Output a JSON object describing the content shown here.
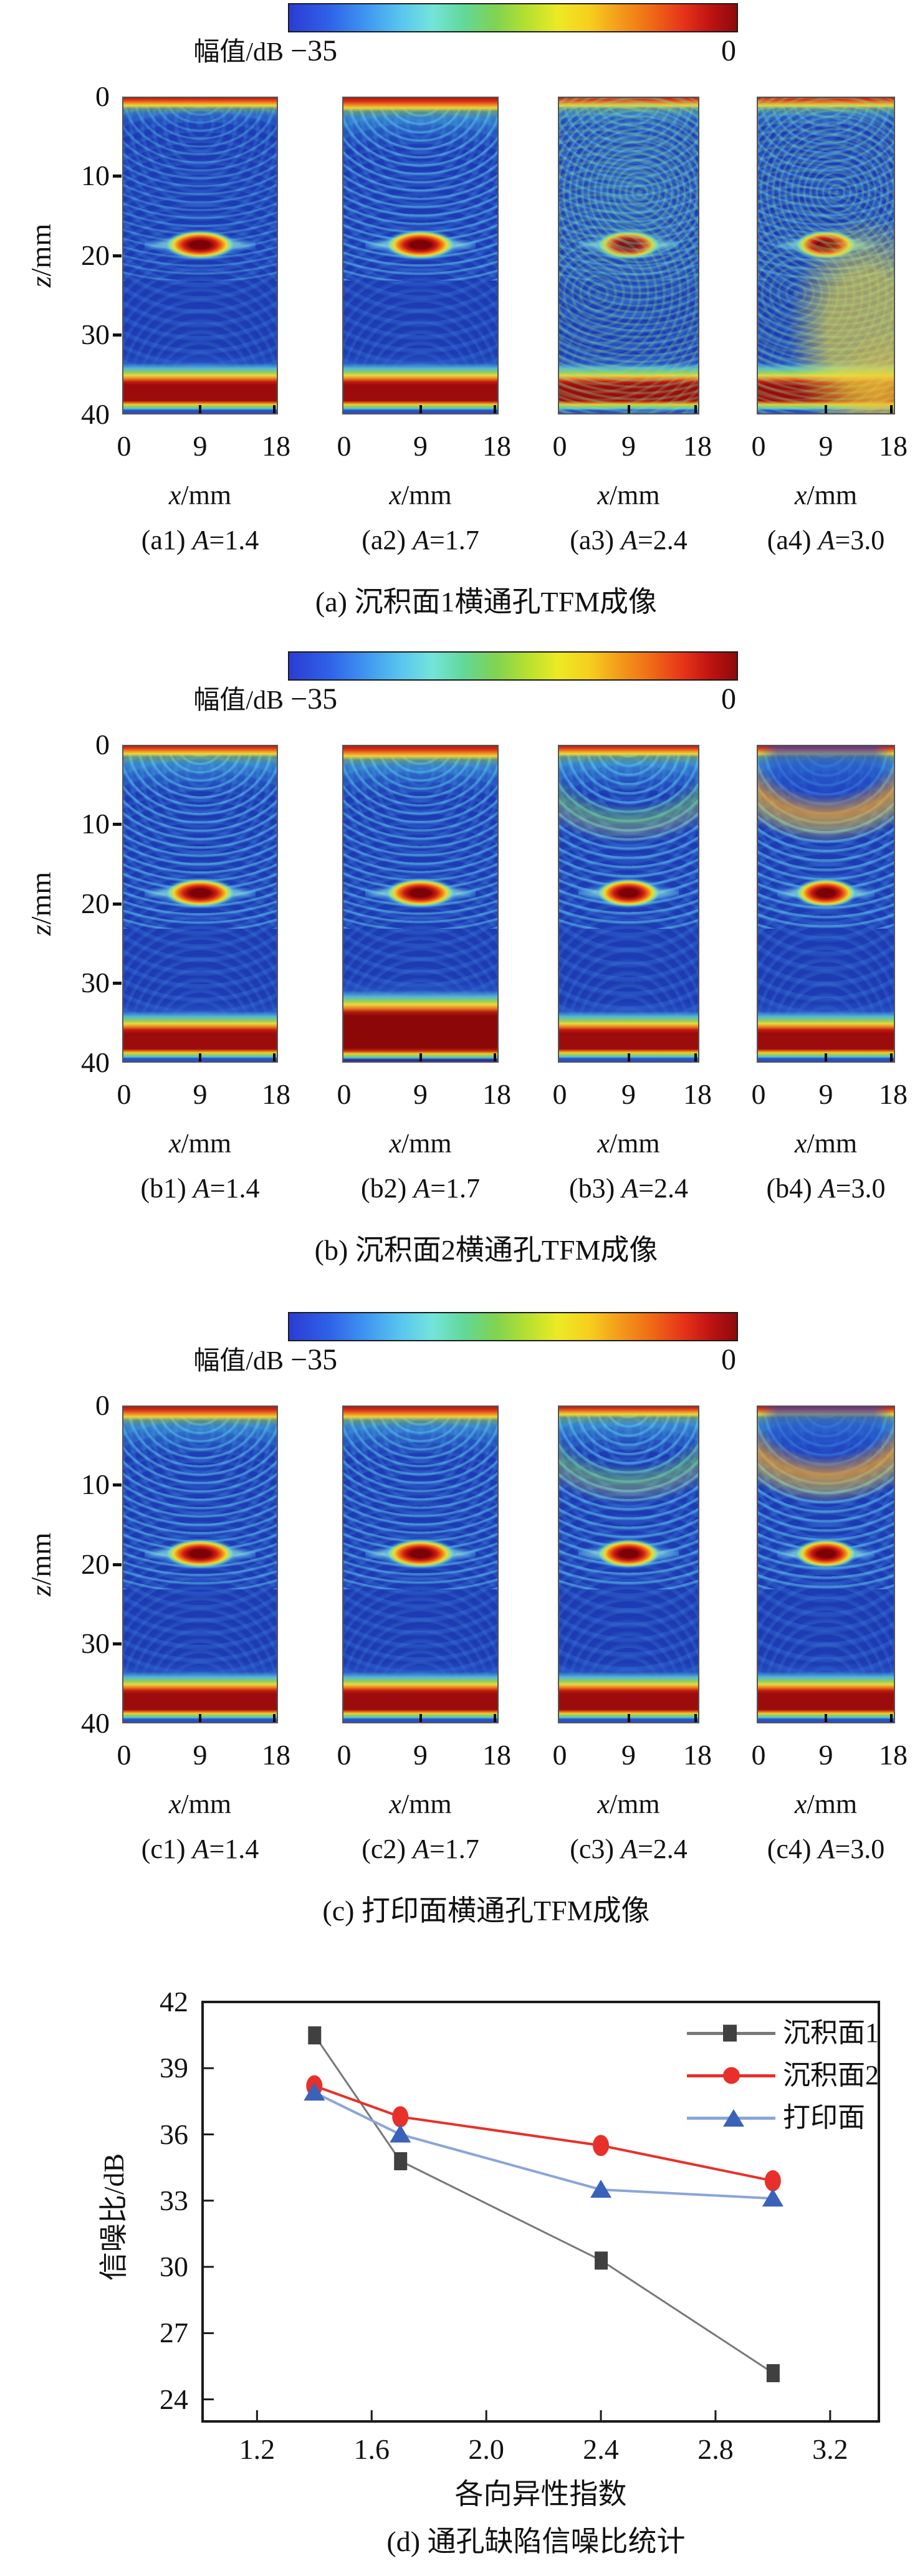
{
  "colorbar": {
    "label": "幅值/dB",
    "min": "−35",
    "max": "0",
    "colormap": "jet",
    "colormap_colors": [
      "#2b3cd2",
      "#3f95f0",
      "#74e4da",
      "#7ed352",
      "#ecea24",
      "#f39a1a",
      "#e63418",
      "#8e0a0c"
    ]
  },
  "axes": {
    "x_italic": "x",
    "x_rest": "/mm",
    "z_italic": "z",
    "z_rest": "/mm",
    "x_ticks": [
      "0",
      "9",
      "18"
    ],
    "z_ticks": [
      "0",
      "10",
      "20",
      "30",
      "40"
    ]
  },
  "sections": [
    {
      "id": "a",
      "caption": "(a) 沉积面1横通孔TFM成像",
      "panels": [
        {
          "id": "a1",
          "label_prefix": "(a1) ",
          "label_var": "A",
          "label_value": "=1.4"
        },
        {
          "id": "a2",
          "label_prefix": "(a2) ",
          "label_var": "A",
          "label_value": "=1.7"
        },
        {
          "id": "a3",
          "label_prefix": "(a3) ",
          "label_var": "A",
          "label_value": "=2.4"
        },
        {
          "id": "a4",
          "label_prefix": "(a4) ",
          "label_var": "A",
          "label_value": "=3.0"
        }
      ]
    },
    {
      "id": "b",
      "caption": "(b) 沉积面2横通孔TFM成像",
      "panels": [
        {
          "id": "b1",
          "label_prefix": "(b1) ",
          "label_var": "A",
          "label_value": "=1.4"
        },
        {
          "id": "b2",
          "label_prefix": "(b2) ",
          "label_var": "A",
          "label_value": "=1.7"
        },
        {
          "id": "b3",
          "label_prefix": "(b3) ",
          "label_var": "A",
          "label_value": "=2.4"
        },
        {
          "id": "b4",
          "label_prefix": "(b4) ",
          "label_var": "A",
          "label_value": "=3.0"
        }
      ]
    },
    {
      "id": "c",
      "caption": "(c) 打印面横通孔TFM成像",
      "panels": [
        {
          "id": "c1",
          "label_prefix": "(c1) ",
          "label_var": "A",
          "label_value": "=1.4"
        },
        {
          "id": "c2",
          "label_prefix": "(c2) ",
          "label_var": "A",
          "label_value": "=1.7"
        },
        {
          "id": "c3",
          "label_prefix": "(c3) ",
          "label_var": "A",
          "label_value": "=2.4"
        },
        {
          "id": "c4",
          "label_prefix": "(c4) ",
          "label_var": "A",
          "label_value": "=3.0"
        }
      ]
    }
  ],
  "chart": {
    "caption": "(d) 通孔缺陷信噪比统计",
    "ylabel": "信噪比/dB",
    "xlabel": "各向异性指数",
    "y_ticks": [
      "42",
      "39",
      "36",
      "33",
      "30",
      "27",
      "24"
    ],
    "x_ticks": [
      "1.2",
      "1.6",
      "2.0",
      "2.4",
      "2.8",
      "3.2"
    ]
  },
  "chart_data": {
    "type": "line",
    "title": "(d) 通孔缺陷信噪比统计",
    "xlabel": "各向异性指数",
    "ylabel": "信噪比/dB",
    "x": [
      1.4,
      1.7,
      2.4,
      3.0
    ],
    "series": [
      {
        "name": "沉积面1",
        "marker": "square",
        "color": "#404040",
        "line_color": "#787878",
        "line_width": 3,
        "values": [
          40.5,
          34.8,
          30.3,
          25.2
        ]
      },
      {
        "name": "沉积面2",
        "marker": "circle",
        "color": "#e8302a",
        "line_color": "#e8302a",
        "line_width": 4,
        "values": [
          38.2,
          36.8,
          35.5,
          33.9
        ]
      },
      {
        "name": "打印面",
        "marker": "triangle",
        "color": "#3a62b8",
        "line_color": "#8ba5d9",
        "line_width": 4,
        "values": [
          37.9,
          36.0,
          33.5,
          33.1
        ]
      }
    ],
    "xlim": [
      1.01,
      3.37
    ],
    "ylim": [
      23,
      42
    ],
    "x_tick_values": [
      1.2,
      1.6,
      2.0,
      2.4,
      2.8,
      3.2
    ],
    "y_tick_values": [
      42,
      39,
      36,
      33,
      30,
      27,
      24
    ],
    "legend_position": "top-right",
    "grid": false
  }
}
